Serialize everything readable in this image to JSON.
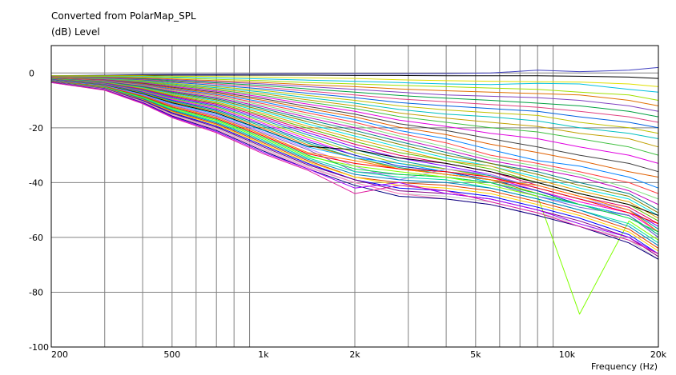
{
  "chart_data": {
    "type": "line",
    "title": "Converted from PolarMap_SPL",
    "ylabel": "(dB)  Level",
    "xlabel": "Frequency  (Hz)",
    "xscale": "log",
    "xlim": [
      200,
      20000
    ],
    "ylim": [
      -100,
      10
    ],
    "grid": true,
    "xticks": [
      {
        "value": 200,
        "label": "200"
      },
      {
        "value": 500,
        "label": "500"
      },
      {
        "value": 1000,
        "label": "1k"
      },
      {
        "value": 2000,
        "label": "2k"
      },
      {
        "value": 5000,
        "label": "5k"
      },
      {
        "value": 10000,
        "label": "10k"
      },
      {
        "value": 20000,
        "label": "20k"
      }
    ],
    "yticks": [
      {
        "value": 0,
        "label": "0"
      },
      {
        "value": -20,
        "label": "-20"
      },
      {
        "value": -40,
        "label": "-40"
      },
      {
        "value": -60,
        "label": "-60"
      },
      {
        "value": -80,
        "label": "-80"
      },
      {
        "value": -100,
        "label": "-100"
      }
    ],
    "x": [
      200,
      300,
      400,
      500,
      700,
      1000,
      1400,
      2000,
      2800,
      4000,
      5600,
      8000,
      11000,
      16000,
      20000
    ],
    "series": [
      {
        "color": "#4040c0",
        "values": [
          -1,
          -0.8,
          -0.6,
          -0.5,
          -0.5,
          -0.4,
          -0.3,
          -0.3,
          -0.3,
          -0.2,
          0,
          1,
          0.5,
          1,
          2
        ]
      },
      {
        "color": "#000000",
        "values": [
          -1,
          -0.9,
          -0.8,
          -0.8,
          -0.8,
          -0.8,
          -0.8,
          -0.9,
          -0.9,
          -1,
          -1,
          -1,
          -1.2,
          -1.5,
          -2
        ]
      },
      {
        "color": "#e0e000",
        "values": [
          -1,
          -1,
          -1,
          -1.2,
          -1.3,
          -1.5,
          -1.8,
          -2,
          -2.5,
          -2.8,
          -3,
          -3.2,
          -3.3,
          -4,
          -5
        ]
      },
      {
        "color": "#00c0e0",
        "values": [
          -1.2,
          -1.2,
          -1.3,
          -1.5,
          -1.8,
          -2.2,
          -2.6,
          -3,
          -3.5,
          -4,
          -4.2,
          -3.8,
          -4,
          -6,
          -7
        ]
      },
      {
        "color": "#a0e000",
        "values": [
          -1.2,
          -1.3,
          -1.5,
          -1.8,
          -2.3,
          -2.8,
          -3.5,
          -4,
          -4.5,
          -5,
          -5.5,
          -6,
          -7,
          -8,
          -10
        ]
      },
      {
        "color": "#e07000",
        "values": [
          -1.3,
          -1.5,
          -1.8,
          -2.2,
          -2.8,
          -3.5,
          -4.3,
          -5,
          -5.8,
          -6.5,
          -7,
          -7.5,
          -8,
          -10,
          -12
        ]
      },
      {
        "color": "#8040c0",
        "values": [
          -1.3,
          -1.6,
          -2,
          -2.5,
          -3.2,
          -4,
          -5,
          -6,
          -7,
          -8,
          -8.5,
          -9,
          -10,
          -12,
          -14
        ]
      },
      {
        "color": "#00a040",
        "values": [
          -1.4,
          -1.7,
          -2.2,
          -2.8,
          -3.6,
          -4.6,
          -5.8,
          -7,
          -8.2,
          -9.2,
          -10,
          -11,
          -12,
          -14,
          -16
        ]
      },
      {
        "color": "#e04080",
        "values": [
          -1.4,
          -1.8,
          -2.4,
          -3.1,
          -4,
          -5.2,
          -6.6,
          -8,
          -9.5,
          -10.5,
          -11.5,
          -12.5,
          -14,
          -16,
          -18
        ]
      },
      {
        "color": "#0060e0",
        "values": [
          -1.5,
          -2,
          -2.6,
          -3.4,
          -4.5,
          -5.8,
          -7.4,
          -9,
          -10.8,
          -12,
          -13,
          -14,
          -16,
          -18,
          -20
        ]
      },
      {
        "color": "#c0c000",
        "values": [
          -1.5,
          -2.1,
          -2.8,
          -3.7,
          -5,
          -6.4,
          -8.2,
          -10,
          -12,
          -13.5,
          -14.5,
          -15.5,
          -18,
          -20,
          -22
        ]
      },
      {
        "color": "#00c0c0",
        "values": [
          -1.6,
          -2.2,
          -3,
          -4,
          -5.4,
          -7,
          -9,
          -11,
          -13.3,
          -15,
          -16,
          -17.5,
          -20,
          -22,
          -24
        ]
      },
      {
        "color": "#c0a000",
        "values": [
          -1.6,
          -2.3,
          -3.2,
          -4.3,
          -5.8,
          -7.6,
          -9.8,
          -12,
          -14.6,
          -16.5,
          -18,
          -19.5,
          -22,
          -24,
          -27
        ]
      },
      {
        "color": "#40c040",
        "values": [
          -1.7,
          -2.4,
          -3.4,
          -4.6,
          -6.2,
          -8.2,
          -10.6,
          -13,
          -15.9,
          -18,
          -20,
          -21.5,
          -24,
          -27,
          -30
        ]
      },
      {
        "color": "#e000e0",
        "values": [
          -1.7,
          -2.5,
          -3.6,
          -4.9,
          -6.6,
          -8.8,
          -11.4,
          -14,
          -17.2,
          -19.5,
          -22,
          -24,
          -27,
          -30,
          -33
        ]
      },
      {
        "color": "#404040",
        "values": [
          -1.8,
          -2.6,
          -3.8,
          -5.2,
          -7,
          -9.4,
          -12.2,
          -15,
          -18.5,
          -21,
          -24,
          -27,
          -30,
          -33,
          -36
        ]
      },
      {
        "color": "#e06000",
        "values": [
          -1.8,
          -2.7,
          -4,
          -5.5,
          -7.4,
          -10,
          -13,
          -16,
          -19.8,
          -22.5,
          -26,
          -29,
          -32,
          -36,
          -38
        ]
      },
      {
        "color": "#0080ff",
        "values": [
          -1.9,
          -2.8,
          -4.2,
          -5.8,
          -7.8,
          -10.6,
          -13.8,
          -17,
          -21,
          -24,
          -28,
          -32,
          -34,
          -38,
          -42
        ]
      },
      {
        "color": "#ff4040",
        "values": [
          -1.9,
          -2.9,
          -4.4,
          -6.1,
          -8.2,
          -11.2,
          -14.6,
          -18,
          -22,
          -25.5,
          -30,
          -33,
          -36,
          -40,
          -44
        ]
      },
      {
        "color": "#80e080",
        "values": [
          -2,
          -3,
          -4.6,
          -6.4,
          -8.6,
          -11.8,
          -15.4,
          -19,
          -23,
          -27,
          -31,
          -34,
          -37,
          -42,
          -46
        ]
      },
      {
        "color": "#c000c0",
        "values": [
          -2,
          -3.1,
          -4.8,
          -6.7,
          -9,
          -12.4,
          -16.2,
          -20,
          -24,
          -28,
          -32,
          -35,
          -38,
          -43,
          -48
        ]
      },
      {
        "color": "#008080",
        "values": [
          -2,
          -3.2,
          -5,
          -7,
          -9.4,
          -13,
          -17,
          -21,
          -25,
          -29,
          -33,
          -36,
          -40,
          -44,
          -50
        ]
      },
      {
        "color": "#808000",
        "values": [
          -2.1,
          -3.3,
          -5.2,
          -7.3,
          -9.8,
          -13.6,
          -17.8,
          -22,
          -26,
          -30,
          -33,
          -37,
          -41,
          -45,
          -51
        ]
      },
      {
        "color": "#00e0e0",
        "values": [
          -2.1,
          -3.4,
          -5.4,
          -7.6,
          -10.2,
          -14.2,
          -18.6,
          -23,
          -27,
          -31,
          -34,
          -38,
          -42,
          -46,
          -52
        ]
      },
      {
        "color": "#e0a000",
        "values": [
          -2.2,
          -3.5,
          -5.6,
          -7.9,
          -10.6,
          -14.8,
          -19.4,
          -24,
          -28,
          -32,
          -34,
          -39,
          -43,
          -47,
          -53
        ]
      },
      {
        "color": "#60c000",
        "values": [
          -2.2,
          -3.6,
          -5.8,
          -8.2,
          -11,
          -15.4,
          -20.2,
          -25,
          -29,
          -32,
          -35,
          -40,
          -44,
          -48,
          -54
        ]
      },
      {
        "color": "#e00060",
        "values": [
          -2.3,
          -3.7,
          -6,
          -8.5,
          -11.4,
          -16,
          -21,
          -26,
          -30,
          -33,
          -36,
          -41,
          -45,
          -49,
          -55
        ]
      },
      {
        "color": "#8000ff",
        "values": [
          -2.3,
          -3.8,
          -6.2,
          -8.8,
          -11.8,
          -16.6,
          -21.8,
          -27,
          -31,
          -34,
          -37,
          -42,
          -46,
          -50,
          -56
        ]
      },
      {
        "color": "#00a0a0",
        "values": [
          -2.4,
          -3.9,
          -6.4,
          -9.1,
          -12.2,
          -17.2,
          -22.6,
          -28,
          -32,
          -35,
          -37.5,
          -42,
          -46,
          -50,
          -57
        ]
      },
      {
        "color": "#a0c000",
        "values": [
          -2.4,
          -4,
          -6.6,
          -9.4,
          -12.6,
          -17.8,
          -23.4,
          -29,
          -33,
          -35,
          -38,
          -43,
          -47,
          -51,
          -58
        ]
      },
      {
        "color": "#ff00ff",
        "values": [
          -2.5,
          -4.1,
          -6.8,
          -9.7,
          -13,
          -18.4,
          -24.2,
          -30,
          -34,
          -36,
          -38,
          -43,
          -47,
          -51,
          -58
        ]
      },
      {
        "color": "#0040c0",
        "values": [
          -2.5,
          -4.2,
          -7,
          -10,
          -13.4,
          -19,
          -25,
          -30,
          -34,
          -36,
          -39,
          -43,
          -48,
          -52,
          -59
        ]
      },
      {
        "color": "#00c080",
        "values": [
          -2.6,
          -4.3,
          -7.2,
          -10.3,
          -13.8,
          -19.6,
          -25.6,
          -31,
          -34.5,
          -37,
          -39,
          -44,
          -48,
          -52,
          -59
        ]
      },
      {
        "color": "#e08000",
        "values": [
          -2.6,
          -4.4,
          -7.4,
          -10.6,
          -14.2,
          -20.2,
          -26.2,
          -31,
          -35,
          -37,
          -39,
          -44,
          -48,
          -52,
          -60
        ]
      },
      {
        "color": "#000000",
        "values": [
          -2.7,
          -4.5,
          -7.6,
          -10.9,
          -14.6,
          -20.8,
          -26.8,
          -28,
          -31,
          -33,
          -36,
          -40,
          -44,
          -48,
          -52
        ]
      },
      {
        "color": "#00b0ff",
        "values": [
          -2.7,
          -4.6,
          -7.8,
          -11.2,
          -15,
          -21,
          -27,
          -31,
          -33,
          -36,
          -40,
          -45,
          -48,
          -52,
          -60
        ]
      },
      {
        "color": "#c080ff",
        "values": [
          -2.8,
          -4.7,
          -8,
          -11.5,
          -15.4,
          -21.5,
          -27.5,
          -34,
          -39,
          -35,
          -37,
          -42,
          -46,
          -50,
          -58
        ]
      },
      {
        "color": "#7a5ccc",
        "values": [
          -2.8,
          -4.8,
          -8.2,
          -11.8,
          -15.8,
          -22,
          -28,
          -36,
          -37,
          -38,
          -40,
          -45,
          -49,
          -52,
          -60
        ]
      },
      {
        "color": "#ff8000",
        "values": [
          -2.9,
          -4.9,
          -8.4,
          -12.1,
          -16.2,
          -22.5,
          -29,
          -32,
          -35,
          -37,
          -39,
          -41,
          -45,
          -50,
          -58
        ]
      },
      {
        "color": "#ff0000",
        "values": [
          -2.9,
          -5,
          -8.6,
          -12.4,
          -16.6,
          -23,
          -29.5,
          -33,
          -35,
          -36,
          -38,
          -42,
          -46,
          -51,
          -55
        ]
      },
      {
        "color": "#00e040",
        "values": [
          -3,
          -5.1,
          -8.8,
          -12.7,
          -17,
          -23.5,
          -30,
          -35,
          -37,
          -38,
          -40,
          -44,
          -48,
          -53,
          -58
        ]
      },
      {
        "color": "#80ff00",
        "values": [
          -3,
          -5.2,
          -9,
          -13,
          -17.4,
          -24,
          -30.5,
          -34,
          -36,
          -38,
          -41,
          -45,
          -88,
          -54,
          -61
        ]
      },
      {
        "color": "#00e0a0",
        "values": [
          -3,
          -5.3,
          -9.2,
          -13.3,
          -17.8,
          -24.5,
          -31,
          -36,
          -38,
          -39,
          -42,
          -46,
          -50,
          -55,
          -62
        ]
      },
      {
        "color": "#0080c0",
        "values": [
          -3.1,
          -5.4,
          -9.4,
          -13.6,
          -18.2,
          -25,
          -31.5,
          -37,
          -39,
          -40,
          -42,
          -46,
          -50,
          -56,
          -63
        ]
      },
      {
        "color": "#e04000",
        "values": [
          -3.1,
          -5.5,
          -9.6,
          -13.9,
          -18.6,
          -25.5,
          -32,
          -38,
          -40,
          -41,
          -43,
          -47,
          -51,
          -57,
          -64
        ]
      },
      {
        "color": "#ffd000",
        "values": [
          -3.2,
          -5.6,
          -9.8,
          -14.2,
          -19,
          -26,
          -32.5,
          -38,
          -41,
          -42,
          -44,
          -48,
          -52,
          -58,
          -65
        ]
      },
      {
        "color": "#0000ff",
        "values": [
          -3.2,
          -5.7,
          -10,
          -14.5,
          -19.4,
          -26.5,
          -33,
          -39,
          -42,
          -43,
          -45,
          -49,
          -53,
          -59,
          -66
        ]
      },
      {
        "color": "#800080",
        "values": [
          -3.3,
          -5.8,
          -10.2,
          -14.8,
          -19.8,
          -27,
          -33.5,
          -39,
          -43,
          -44,
          -46,
          -50,
          -54,
          -60,
          -67
        ]
      },
      {
        "color": "#c0c0c0",
        "values": [
          -3.3,
          -5.9,
          -10.4,
          -15.1,
          -20.2,
          -27.5,
          -34,
          -40,
          -44,
          -45,
          -47,
          -51,
          -55,
          -61,
          -68
        ]
      },
      {
        "color": "#ff80c0",
        "values": [
          -3.4,
          -6,
          -10.6,
          -15.4,
          -20.6,
          -28,
          -34.5,
          -40,
          -44,
          -46,
          -48,
          -52,
          -56,
          -62,
          -68
        ]
      },
      {
        "color": "#000080",
        "values": [
          -3.4,
          -6.1,
          -10.8,
          -15.7,
          -21,
          -28.5,
          -35,
          -41,
          -45,
          -46,
          -48,
          -52,
          -56,
          -62,
          -68
        ]
      },
      {
        "color": "#a000ff",
        "values": [
          -3.5,
          -6.2,
          -11,
          -16,
          -21.4,
          -29,
          -35,
          -42,
          -40,
          -44,
          -46,
          -50,
          -55,
          -60,
          -66
        ]
      },
      {
        "color": "#e020a0",
        "values": [
          -3.5,
          -6.3,
          -11.2,
          -16.3,
          -21.8,
          -29.5,
          -35.5,
          -44,
          -41,
          -43,
          -47,
          -51,
          -56,
          -61,
          -66
        ]
      }
    ]
  }
}
